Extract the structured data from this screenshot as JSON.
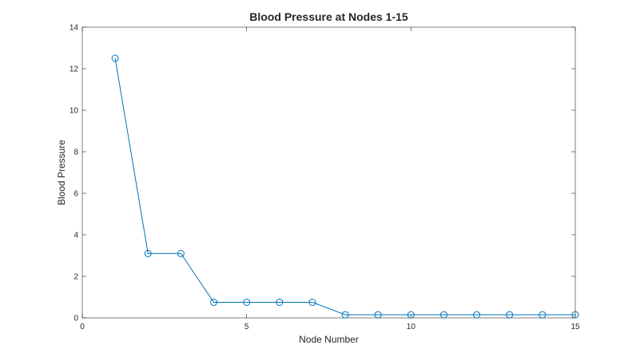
{
  "chart_data": {
    "type": "line",
    "title": "Blood Pressure at Nodes 1-15",
    "xlabel": "Node Number",
    "ylabel": "Blood Pressure",
    "xlim": [
      0,
      15
    ],
    "ylim": [
      0,
      14
    ],
    "xticks": [
      0,
      5,
      10,
      15
    ],
    "yticks": [
      0,
      2,
      4,
      6,
      8,
      10,
      12,
      14
    ],
    "grid": false,
    "marker": "circle",
    "series": [
      {
        "color": "#0072BD",
        "x": [
          1,
          2,
          3,
          4,
          5,
          6,
          7,
          8,
          9,
          10,
          11,
          12,
          13,
          14,
          15
        ],
        "y": [
          12.5,
          3.1,
          3.1,
          0.75,
          0.75,
          0.75,
          0.75,
          0.15,
          0.15,
          0.15,
          0.15,
          0.15,
          0.15,
          0.15,
          0.15
        ]
      }
    ]
  }
}
